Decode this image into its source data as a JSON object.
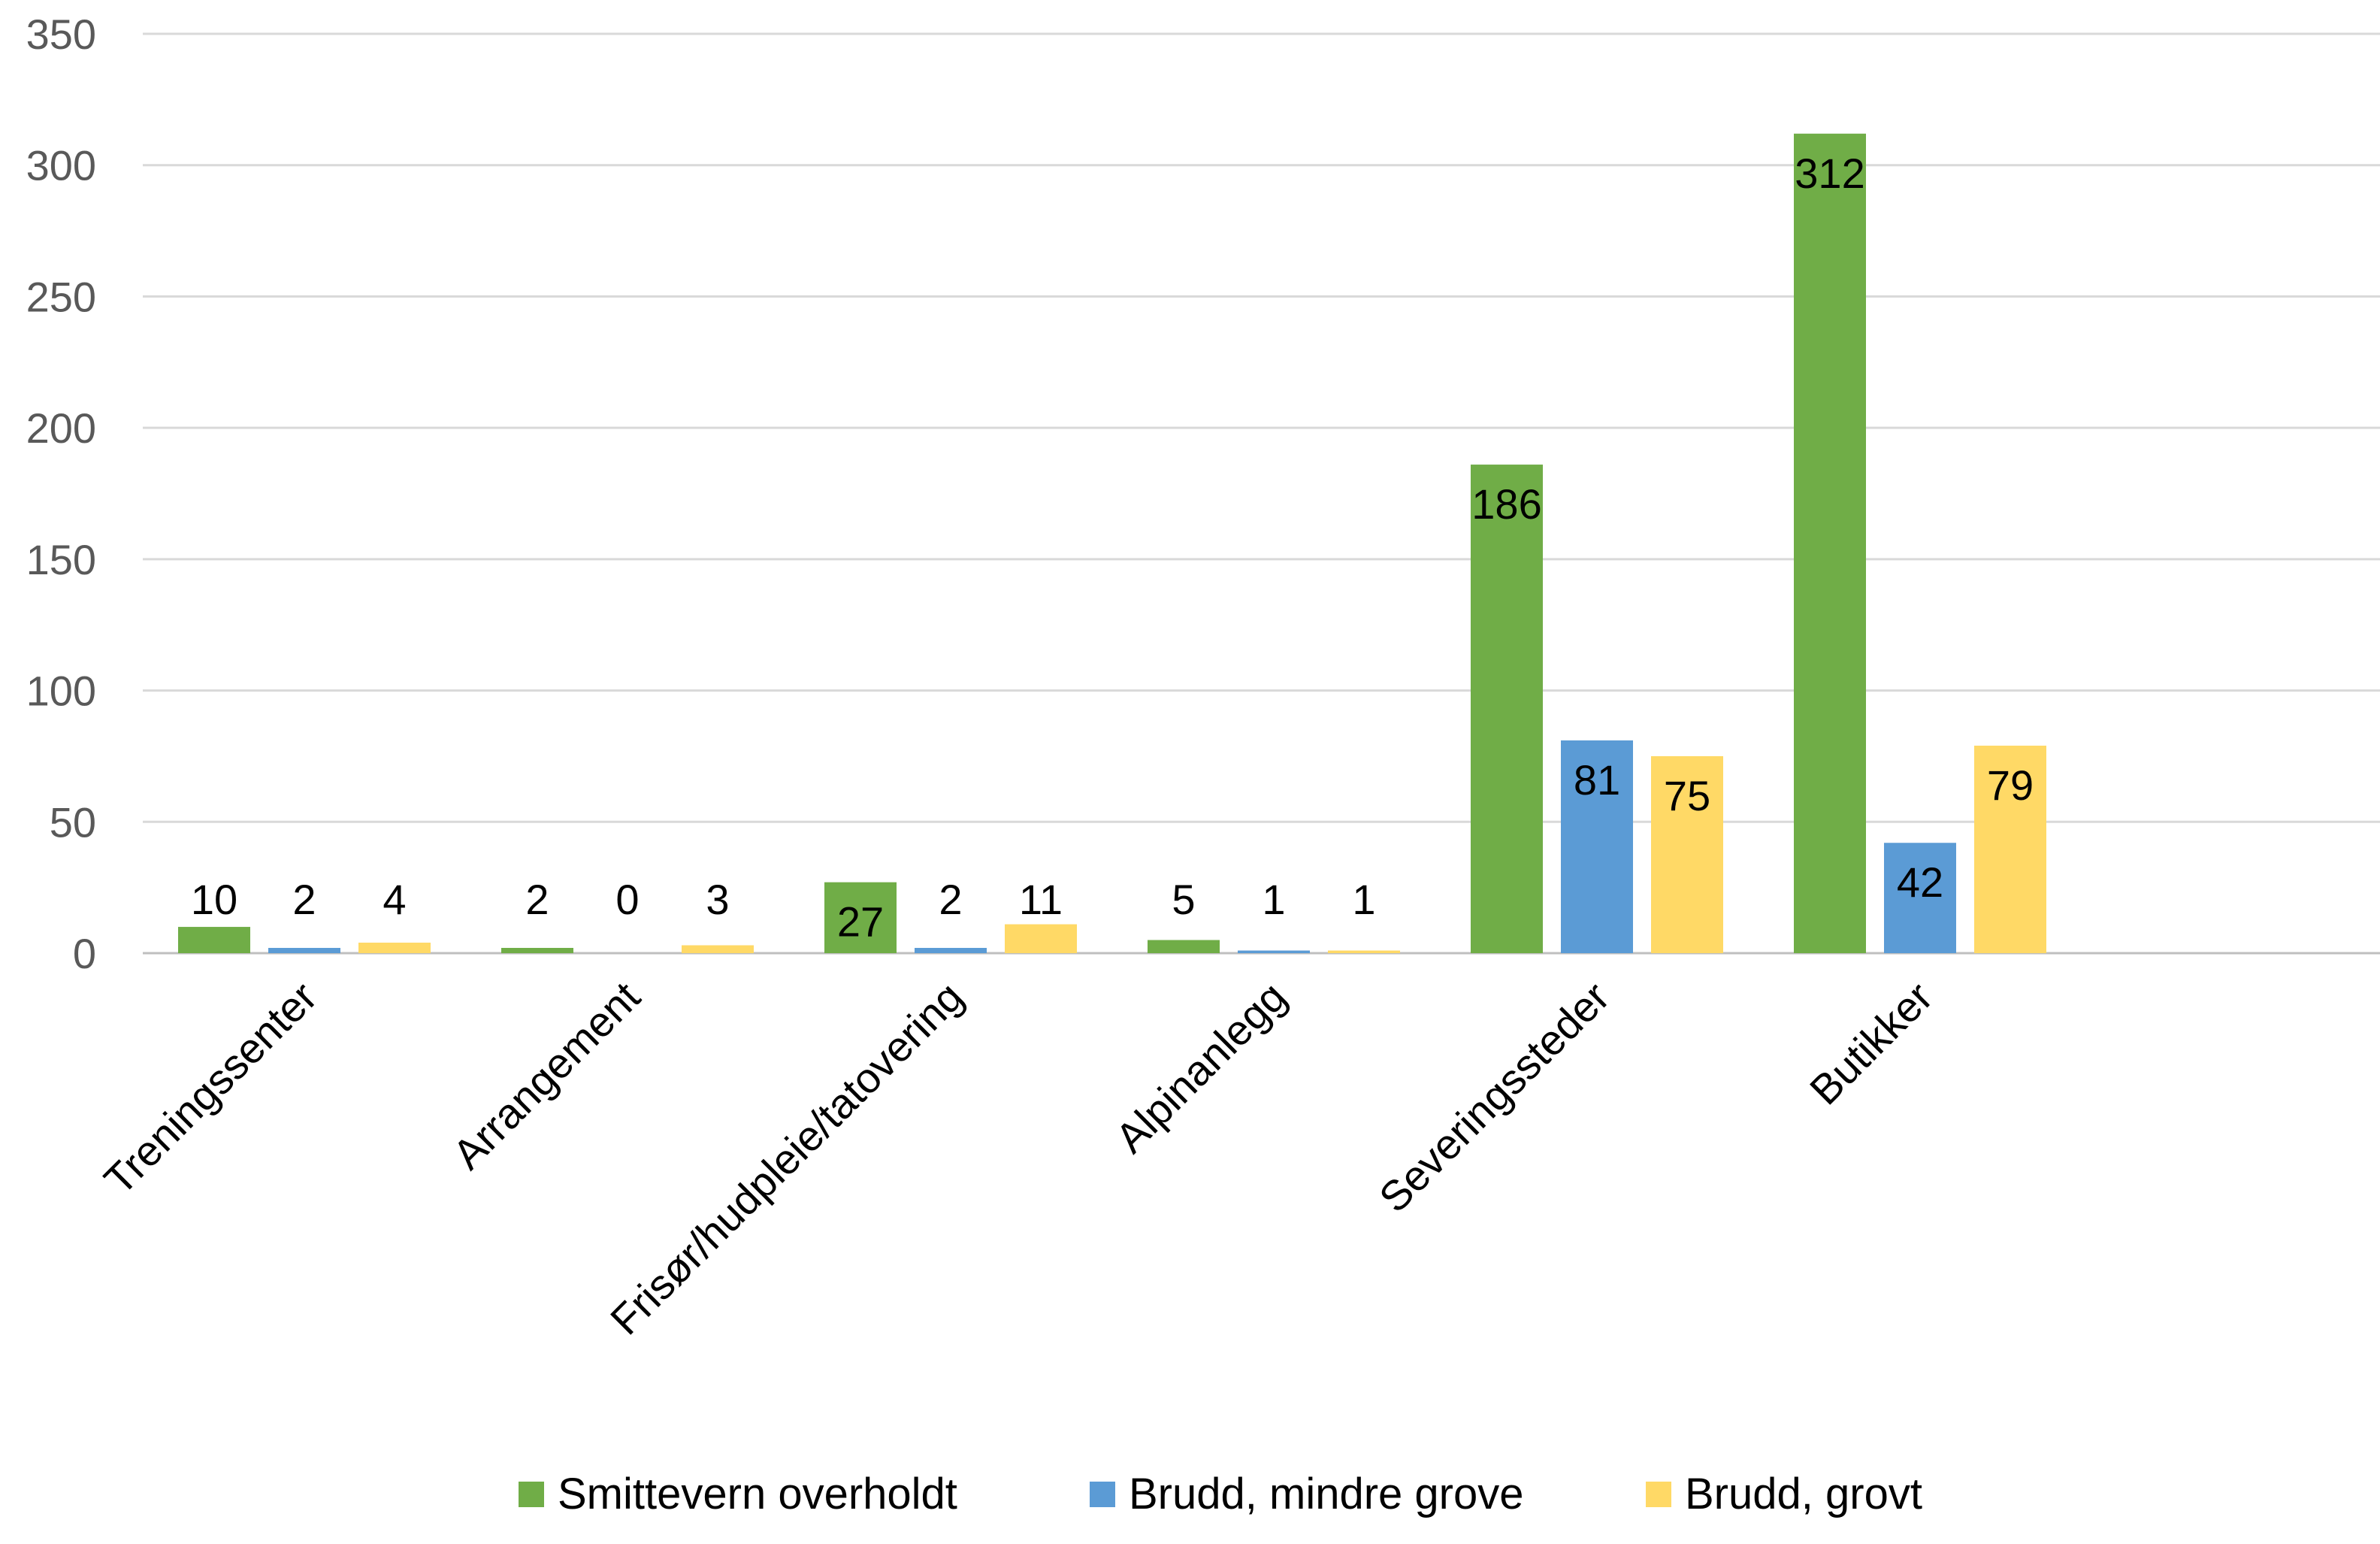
{
  "chart_data": {
    "type": "bar",
    "title": "",
    "xlabel": "",
    "ylabel": "",
    "ylim": [
      0,
      350
    ],
    "yticks": [
      0,
      50,
      100,
      150,
      200,
      250,
      300,
      350
    ],
    "grid": true,
    "legend_position": "bottom",
    "categories": [
      "Treningssenter",
      "Arrangement",
      "Frisør/hudpleie/tatovering",
      "Alpinanlegg",
      "Severingssteder",
      "Butikker"
    ],
    "series": [
      {
        "name": "Smittevern overholdt",
        "color": "#70AD47",
        "values": [
          10,
          2,
          27,
          5,
          186,
          312
        ]
      },
      {
        "name": "Brudd, mindre grove",
        "color": "#5B9BD5",
        "values": [
          2,
          0,
          2,
          1,
          81,
          42
        ]
      },
      {
        "name": "Brudd, grovt",
        "color": "#FFD966",
        "values": [
          4,
          3,
          11,
          1,
          75,
          79
        ]
      }
    ]
  }
}
